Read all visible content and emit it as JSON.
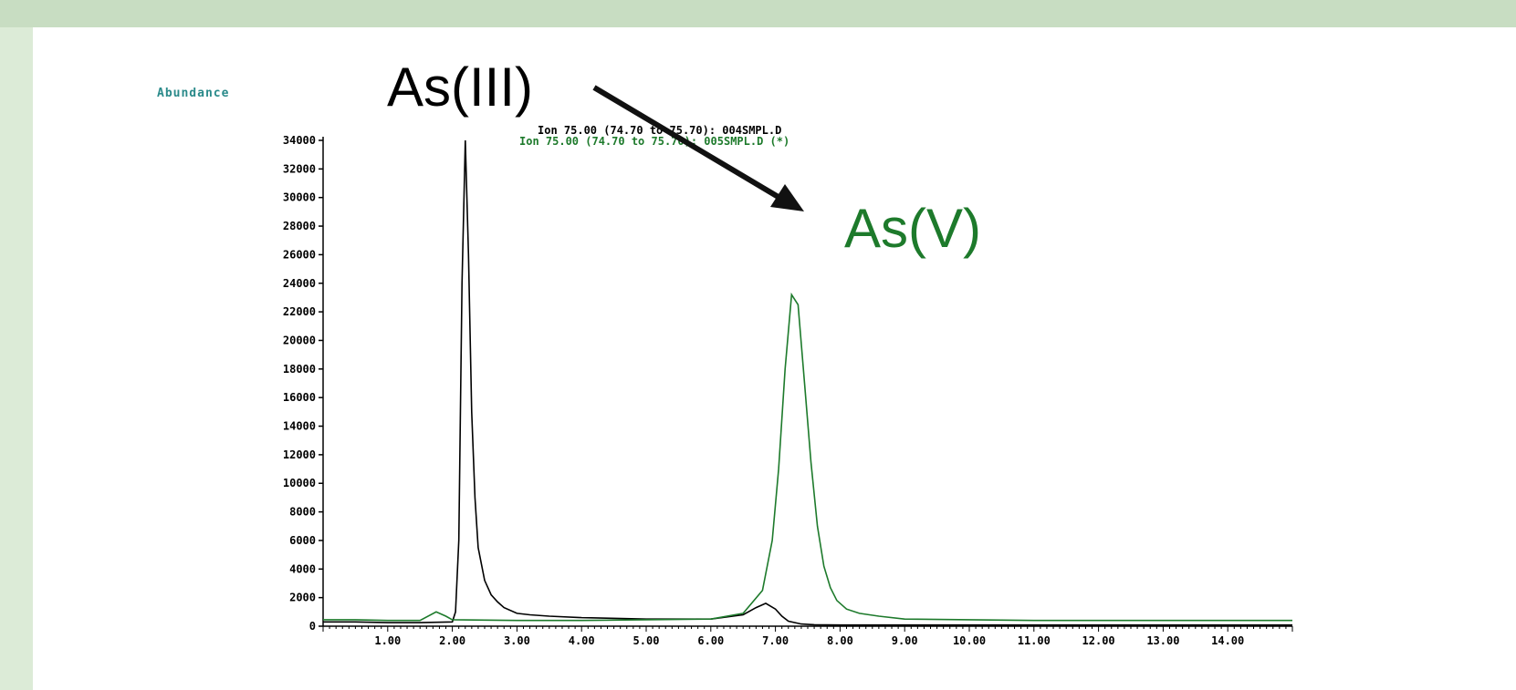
{
  "colors": {
    "background_frame": "#c8ddc2",
    "panel": "#ffffff",
    "as3_trace": "#000000",
    "as5_trace": "#1d7a2b",
    "abundance_label": "#2a8a8a",
    "as5_label": "#1d7a2b"
  },
  "chart_data": {
    "type": "line",
    "ylabel": "Abundance",
    "ylim": [
      0,
      34000
    ],
    "yticks": [
      0,
      2000,
      4000,
      6000,
      8000,
      10000,
      12000,
      14000,
      16000,
      18000,
      20000,
      22000,
      24000,
      26000,
      28000,
      30000,
      32000,
      34000
    ],
    "ytick_labels": [
      "0",
      "2000",
      "4000",
      "6000",
      "8000",
      "10000",
      "12000",
      "14000",
      "16000",
      "18000",
      "20000",
      "22000",
      "24000",
      "26000",
      "28000",
      "30000",
      "32000",
      "34000"
    ],
    "xlim": [
      0,
      15
    ],
    "xticks": [
      1,
      2,
      3,
      4,
      5,
      6,
      7,
      8,
      9,
      10,
      11,
      12,
      13,
      14
    ],
    "xtick_labels": [
      "1.00",
      "2.00",
      "3.00",
      "4.00",
      "5.00",
      "6.00",
      "7.00",
      "8.00",
      "9.00",
      "10.00",
      "11.00",
      "12.00",
      "13.00",
      "14.00"
    ],
    "legend": [
      "Ion 75.00 (74.70 to 75.70): 004SMPL.D",
      "Ion 75.00 (74.70 to 75.70): 005SMPL.D (*)"
    ],
    "series": [
      {
        "name": "Ion 75.00 (74.70 to 75.70): 004SMPL.D",
        "color": "#000000",
        "x": [
          0.0,
          0.5,
          1.0,
          1.5,
          2.0,
          2.05,
          2.1,
          2.15,
          2.2,
          2.25,
          2.3,
          2.35,
          2.4,
          2.5,
          2.6,
          2.7,
          2.8,
          3.0,
          3.2,
          3.5,
          4.0,
          5.0,
          6.0,
          6.5,
          6.7,
          6.85,
          7.0,
          7.1,
          7.2,
          7.4,
          7.6,
          8.0,
          9.0,
          10.0,
          11.0,
          12.0,
          13.0,
          14.0,
          15.0
        ],
        "y": [
          300,
          300,
          250,
          250,
          300,
          1000,
          6000,
          24000,
          34000,
          26000,
          15000,
          9000,
          5500,
          3200,
          2200,
          1700,
          1300,
          900,
          800,
          700,
          600,
          500,
          500,
          800,
          1300,
          1600,
          1200,
          700,
          350,
          150,
          100,
          80,
          80,
          80,
          80,
          80,
          80,
          80,
          80
        ]
      },
      {
        "name": "Ion 75.00 (74.70 to 75.70): 005SMPL.D (*)",
        "color": "#1d7a2b",
        "x": [
          0.0,
          0.5,
          1.0,
          1.5,
          1.75,
          1.9,
          2.0,
          3.0,
          4.0,
          5.0,
          6.0,
          6.5,
          6.8,
          6.95,
          7.05,
          7.15,
          7.25,
          7.35,
          7.45,
          7.55,
          7.65,
          7.75,
          7.85,
          7.95,
          8.1,
          8.3,
          8.6,
          9.0,
          10.0,
          11.0,
          12.0,
          13.0,
          14.0,
          15.0
        ],
        "y": [
          450,
          450,
          400,
          400,
          1000,
          700,
          450,
          400,
          400,
          450,
          500,
          900,
          2500,
          6000,
          11000,
          18000,
          23200,
          22500,
          17000,
          11500,
          7000,
          4200,
          2700,
          1800,
          1200,
          900,
          700,
          500,
          450,
          400,
          400,
          400,
          400,
          400
        ]
      }
    ],
    "annotations": [
      {
        "text": "As(III)",
        "color": "#000000"
      },
      {
        "text": "As(V)",
        "color": "#1d7a2b"
      }
    ]
  }
}
